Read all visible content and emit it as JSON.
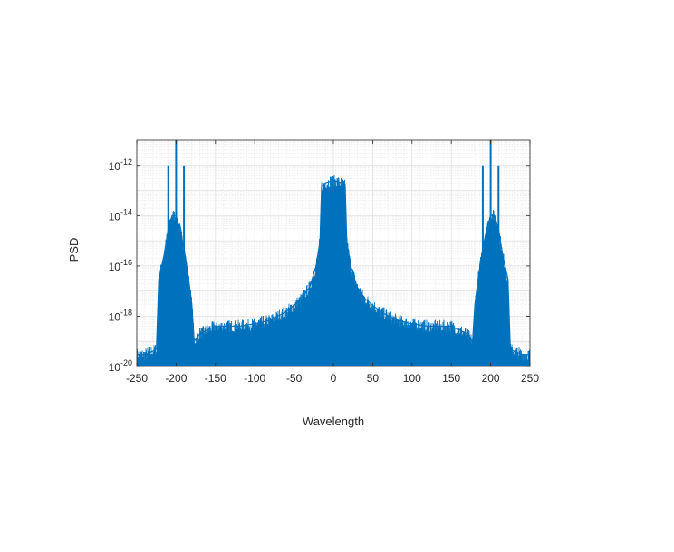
{
  "chart_data": {
    "type": "line",
    "title": "",
    "xlabel": "Wavelength",
    "ylabel": "PSD",
    "xlim": [
      -250,
      250
    ],
    "ylim": [
      1e-20,
      1e-11
    ],
    "yscale": "log",
    "grid": "major and minor",
    "legend": "none",
    "x_ticks": [
      -250,
      -200,
      -150,
      -100,
      -50,
      0,
      50,
      100,
      150,
      200,
      250
    ],
    "x_tick_labels": [
      "-250",
      "-200",
      "-150",
      "-100",
      "-50",
      "0",
      "50",
      "100",
      "150",
      "200",
      "250"
    ],
    "y_ticks": [
      {
        "mantissa": "10",
        "exponent": "-20",
        "value": 1e-20
      },
      {
        "mantissa": "10",
        "exponent": "-18",
        "value": 1e-18
      },
      {
        "mantissa": "10",
        "exponent": "-16",
        "value": 1e-16
      },
      {
        "mantissa": "10",
        "exponent": "-14",
        "value": 1e-14
      },
      {
        "mantissa": "10",
        "exponent": "-12",
        "value": 1e-12
      }
    ],
    "series_color": "#0072BD",
    "series": [
      {
        "description_values": "upper envelope of the noisy PSD trace (x in wavelength, y in PSD)",
        "points": [
          [
            -250,
            3e-20
          ],
          [
            -240,
            3e-20
          ],
          [
            -230,
            4e-20
          ],
          [
            -225,
            5e-20
          ],
          [
            -222,
            3e-17
          ],
          [
            -215,
            3e-16
          ],
          [
            -210,
            3e-15
          ],
          [
            -205,
            1e-14
          ],
          [
            -200,
            1e-14
          ],
          [
            -195,
            3e-15
          ],
          [
            -190,
            5e-16
          ],
          [
            -185,
            5e-17
          ],
          [
            -180,
            3e-18
          ],
          [
            -177,
            1e-19
          ],
          [
            -170,
            2e-19
          ],
          [
            -150,
            4e-19
          ],
          [
            -120,
            4e-19
          ],
          [
            -100,
            5e-19
          ],
          [
            -80,
            7e-19
          ],
          [
            -60,
            1.5e-18
          ],
          [
            -40,
            5e-18
          ],
          [
            -30,
            1.5e-17
          ],
          [
            -22,
            1e-16
          ],
          [
            -17,
            1e-15
          ],
          [
            -15,
            1.5e-13
          ],
          [
            -10,
            2e-13
          ],
          [
            0,
            2.5e-13
          ],
          [
            10,
            2e-13
          ],
          [
            15,
            1.5e-13
          ],
          [
            17,
            1e-15
          ],
          [
            22,
            1e-16
          ],
          [
            30,
            1.5e-17
          ],
          [
            40,
            5e-18
          ],
          [
            60,
            1.5e-18
          ],
          [
            80,
            7e-19
          ],
          [
            100,
            5e-19
          ],
          [
            120,
            4e-19
          ],
          [
            150,
            4e-19
          ],
          [
            170,
            2e-19
          ],
          [
            177,
            1e-19
          ],
          [
            180,
            3e-18
          ],
          [
            185,
            5e-17
          ],
          [
            190,
            5e-16
          ],
          [
            195,
            3e-15
          ],
          [
            200,
            1e-14
          ],
          [
            205,
            1e-14
          ],
          [
            210,
            3e-15
          ],
          [
            215,
            3e-16
          ],
          [
            222,
            3e-17
          ],
          [
            225,
            5e-20
          ],
          [
            230,
            4e-20
          ],
          [
            240,
            3e-20
          ],
          [
            250,
            3e-20
          ]
        ]
      }
    ],
    "spikes": [
      {
        "x": -210,
        "y": 1e-12
      },
      {
        "x": -200,
        "y": 1e-11
      },
      {
        "x": -190,
        "y": 1e-12
      },
      {
        "x": 190,
        "y": 1e-12
      },
      {
        "x": 200,
        "y": 1e-11
      },
      {
        "x": 210,
        "y": 1e-12
      }
    ]
  }
}
